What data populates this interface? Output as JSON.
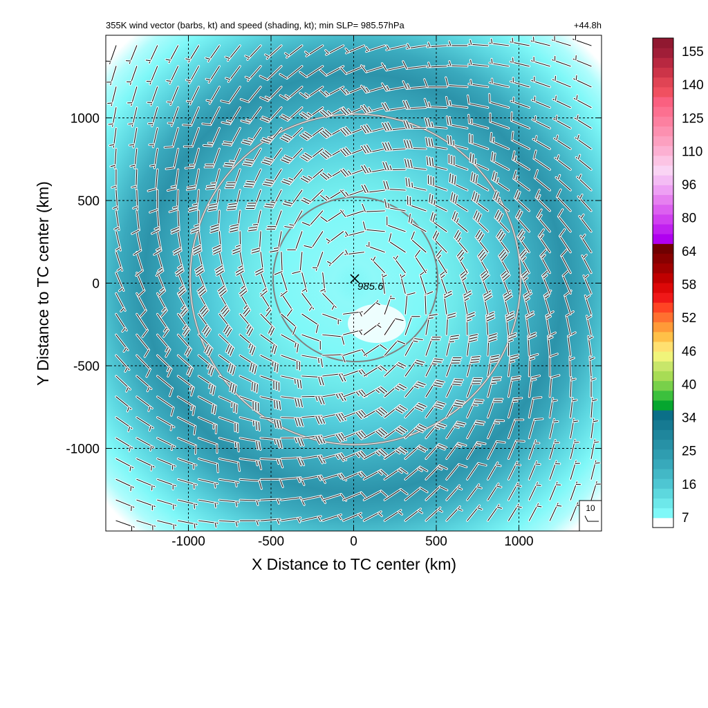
{
  "chart_data": {
    "type": "heatmap",
    "title": "355K wind vector (barbs, kt) and speed (shading, kt); min SLP= 985.57hPa",
    "time_label": "+44.8h",
    "xlabel": "X Distance to TC center (km)",
    "ylabel": "Y Distance to TC center (km)",
    "xlim": [
      -1500,
      1500
    ],
    "ylim": [
      -1500,
      1500
    ],
    "x_ticks": [
      -1000,
      -500,
      0,
      500,
      1000
    ],
    "y_ticks": [
      -1000,
      -500,
      0,
      500,
      1000
    ],
    "x_tick_labels": [
      "-1000",
      "-500",
      "0",
      "500",
      "1000"
    ],
    "y_tick_labels": [
      "-1000",
      "-500",
      "0",
      "500",
      "1000"
    ],
    "grid": "dashed at ticks",
    "center_marker": {
      "x": 0,
      "y": 0,
      "symbol": "×",
      "label": "985.6"
    },
    "range_rings_km": [
      500,
      1000
    ],
    "wind_field": {
      "pattern": "anticyclonic outflow ring",
      "max_speed_kt": 30,
      "max_speed_radius_km": 880,
      "speed_at_center_kt": 8,
      "speed_at_corners_kt": 4,
      "barb_spacing_km": 125
    },
    "reference_vector": {
      "label": "10",
      "speed_kt": 10
    },
    "colorbar": {
      "labels": [
        "7",
        "16",
        "25",
        "34",
        "40",
        "46",
        "52",
        "58",
        "64",
        "80",
        "96",
        "110",
        "125",
        "140",
        "155"
      ],
      "colors": [
        "#ffffff",
        "#7ff8f8",
        "#6de8ea",
        "#5dd8de",
        "#4ec6d2",
        "#43b8c6",
        "#38a9bb",
        "#2f9db0",
        "#2791a6",
        "#1f869c",
        "#167a92",
        "#0b6f88",
        "#05a62f",
        "#3cc03d",
        "#78d04a",
        "#a8dc55",
        "#c8e66a",
        "#f0f47a",
        "#ffe070",
        "#ffc048",
        "#ff9a38",
        "#ff7030",
        "#ff4424",
        "#f01818",
        "#dd0808",
        "#c00000",
        "#a00000",
        "#880000",
        "#700000",
        "#b000f0",
        "#c020f0",
        "#d040f0",
        "#dc60f0",
        "#e680f0",
        "#eea0f4",
        "#f4bcf4",
        "#fad4f4",
        "#fcc4e4",
        "#fcb0d2",
        "#fca0c0",
        "#fc90b0",
        "#fc80a0",
        "#fc7090",
        "#fa6080",
        "#f05060",
        "#e04454",
        "#cc3448",
        "#b82840",
        "#a01e38",
        "#901830"
      ]
    }
  }
}
